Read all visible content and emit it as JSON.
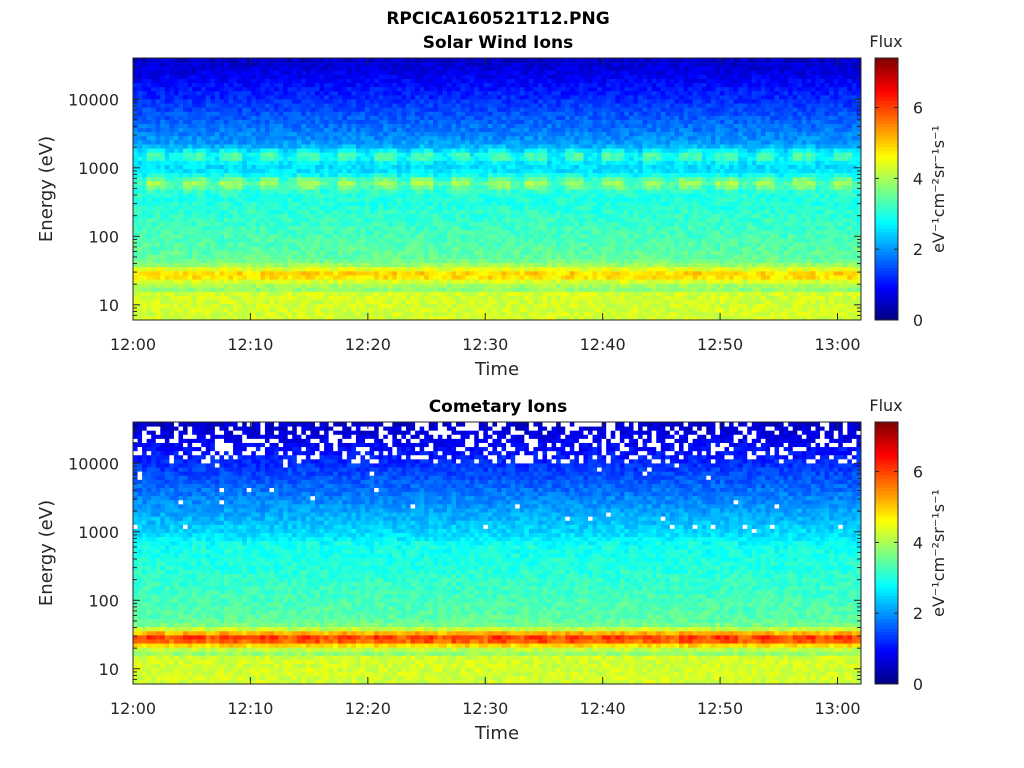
{
  "figure_title": "RPCICA160521T12.PNG",
  "chart_data": [
    {
      "type": "heatmap",
      "title": "Solar Wind Ions",
      "xlabel": "Time",
      "ylabel": "Energy (eV)",
      "y_scale": "log",
      "x_range": [
        "12:00",
        "13:02"
      ],
      "y_range_eV": [
        6,
        40000
      ],
      "x_ticks": [
        "12:00",
        "12:10",
        "12:20",
        "12:30",
        "12:40",
        "12:50",
        "13:00"
      ],
      "y_ticks": [
        "10",
        "100",
        "1000",
        "10000"
      ],
      "colorbar": {
        "label": "Flux",
        "units": "eV⁻¹cm⁻²sr⁻¹s⁻¹",
        "range": [
          0,
          7.4
        ],
        "ticks": [
          "0",
          "2",
          "4",
          "6"
        ],
        "colormap": "jet"
      },
      "bands": [
        {
          "energy_eV": 28,
          "flux": 5.0
        },
        {
          "energy_eV": 600,
          "flux": 4.0
        },
        {
          "energy_eV": 1500,
          "flux": 3.4
        }
      ],
      "pulse_period_min": 3.25,
      "grid": false
    },
    {
      "type": "heatmap",
      "title": "Cometary Ions",
      "xlabel": "Time",
      "ylabel": "Energy (eV)",
      "y_scale": "log",
      "x_range": [
        "12:00",
        "13:02"
      ],
      "y_range_eV": [
        6,
        40000
      ],
      "x_ticks": [
        "12:00",
        "12:10",
        "12:20",
        "12:30",
        "12:40",
        "12:50",
        "13:00"
      ],
      "y_ticks": [
        "10",
        "100",
        "1000",
        "10000"
      ],
      "colorbar": {
        "label": "Flux",
        "units": "eV⁻¹cm⁻²sr⁻¹s⁻¹",
        "range": [
          0,
          7.4
        ],
        "ticks": [
          "0",
          "2",
          "4",
          "6"
        ],
        "colormap": "jet"
      },
      "bands": [
        {
          "energy_eV": 28,
          "flux": 6.2
        },
        {
          "energy_eV": 600,
          "flux": 3.0
        }
      ],
      "pulse_period_min": 3.25,
      "grid": false,
      "missing_data_above_eV": 10000
    }
  ]
}
